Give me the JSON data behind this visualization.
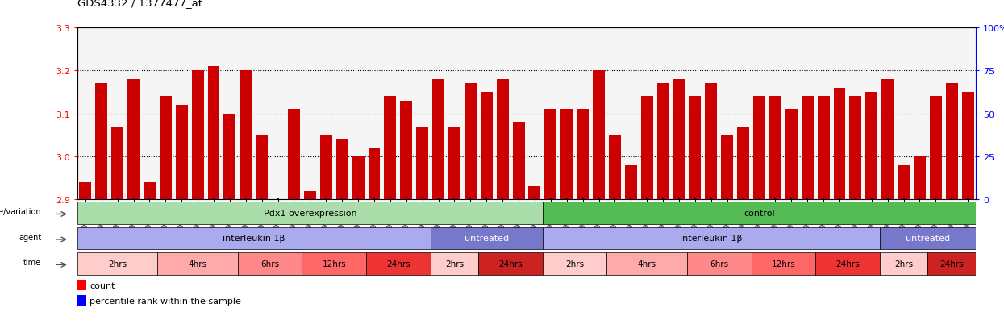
{
  "title": "GDS4332 / 1377477_at",
  "gsm_labels": [
    "GSM998740",
    "GSM998753",
    "GSM998766",
    "GSM998771",
    "GSM998729",
    "GSM998754",
    "GSM998767",
    "GSM998775",
    "GSM998741",
    "GSM998755",
    "GSM998768",
    "GSM998776",
    "GSM998730",
    "GSM998742",
    "GSM998747",
    "GSM998777",
    "GSM998731",
    "GSM998748",
    "GSM998756",
    "GSM998769",
    "GSM998732",
    "GSM998749",
    "GSM998757",
    "GSM998778",
    "GSM998733",
    "GSM998758",
    "GSM998770",
    "GSM998779",
    "GSM998734",
    "GSM998743",
    "GSM998759",
    "GSM998780",
    "GSM998735",
    "GSM998750",
    "GSM998760",
    "GSM998782",
    "GSM998744",
    "GSM998751",
    "GSM998761",
    "GSM998771",
    "GSM998736",
    "GSM998745",
    "GSM998762",
    "GSM998781",
    "GSM998737",
    "GSM998752",
    "GSM998763",
    "GSM998772",
    "GSM998738",
    "GSM998764",
    "GSM998773",
    "GSM998783",
    "GSM998739",
    "GSM998746",
    "GSM998765",
    "GSM998784"
  ],
  "bar_values": [
    2.94,
    3.17,
    3.07,
    3.18,
    2.94,
    3.14,
    3.12,
    3.2,
    3.21,
    3.1,
    3.2,
    3.05,
    2.85,
    3.11,
    2.92,
    3.05,
    3.04,
    3.0,
    3.02,
    3.14,
    3.13,
    3.07,
    3.18,
    3.07,
    3.17,
    3.15,
    3.18,
    3.08,
    2.93,
    3.11,
    3.11,
    3.11,
    3.2,
    3.05,
    2.98,
    3.14,
    3.17,
    3.18,
    3.14,
    3.17,
    3.05,
    3.07,
    3.14,
    3.14,
    3.11,
    3.14,
    3.14,
    3.16,
    3.14,
    3.15,
    3.18,
    2.98,
    3.0,
    3.14,
    3.17,
    3.15
  ],
  "ylim": [
    2.9,
    3.3
  ],
  "yticks": [
    2.9,
    3.0,
    3.1,
    3.2,
    3.3
  ],
  "right_yticks": [
    0,
    25,
    50,
    75,
    100
  ],
  "bar_color": "#cc0000",
  "blue_baseline_color": "#0000cc",
  "plot_bg_color": "#f5f5f5",
  "time_groups": [
    {
      "label": "2hrs",
      "start": 0,
      "end": 4,
      "color": "#ffcccc"
    },
    {
      "label": "4hrs",
      "start": 5,
      "end": 9,
      "color": "#ffaaaa"
    },
    {
      "label": "6hrs",
      "start": 10,
      "end": 13,
      "color": "#ff8888"
    },
    {
      "label": "12hrs",
      "start": 14,
      "end": 17,
      "color": "#ff6666"
    },
    {
      "label": "24hrs",
      "start": 18,
      "end": 21,
      "color": "#ee3333"
    },
    {
      "label": "2hrs",
      "start": 22,
      "end": 24,
      "color": "#ffcccc"
    },
    {
      "label": "24hrs",
      "start": 25,
      "end": 28,
      "color": "#cc2222"
    },
    {
      "label": "2hrs",
      "start": 29,
      "end": 32,
      "color": "#ffcccc"
    },
    {
      "label": "4hrs",
      "start": 33,
      "end": 37,
      "color": "#ffaaaa"
    },
    {
      "label": "6hrs",
      "start": 38,
      "end": 41,
      "color": "#ff8888"
    },
    {
      "label": "12hrs",
      "start": 42,
      "end": 45,
      "color": "#ff6666"
    },
    {
      "label": "24hrs",
      "start": 46,
      "end": 49,
      "color": "#ee3333"
    },
    {
      "label": "2hrs",
      "start": 50,
      "end": 52,
      "color": "#ffcccc"
    },
    {
      "label": "24hrs",
      "start": 53,
      "end": 55,
      "color": "#cc2222"
    }
  ],
  "agent_groups": [
    {
      "label": "interleukin 1β",
      "start": 0,
      "end": 21,
      "color": "#aaaaee"
    },
    {
      "label": "untreated",
      "start": 22,
      "end": 28,
      "color": "#7777cc"
    },
    {
      "label": "interleukin 1β",
      "start": 29,
      "end": 49,
      "color": "#aaaaee"
    },
    {
      "label": "untreated",
      "start": 50,
      "end": 55,
      "color": "#7777cc"
    }
  ],
  "genotype_groups": [
    {
      "label": "Pdx1 overexpression",
      "start": 0,
      "end": 28,
      "color": "#aaddaa"
    },
    {
      "label": "control",
      "start": 29,
      "end": 55,
      "color": "#55bb55"
    }
  ]
}
